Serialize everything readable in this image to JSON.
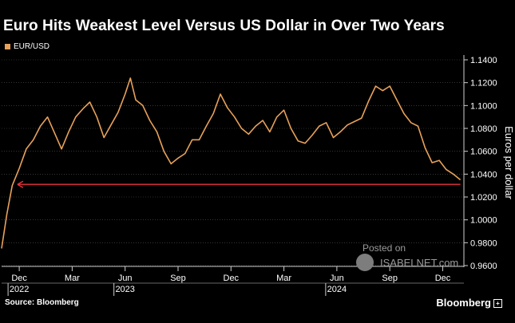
{
  "title": "Euro Hits Weakest Level Versus US Dollar in Over Two Years",
  "legend": {
    "label": "EUR/USD",
    "color": "#e8a15a"
  },
  "source": "Source: Bloomberg",
  "brand": "Bloomberg",
  "brand_icon": "bloomberg-terminal-icon",
  "watermark": {
    "posted": "Posted on",
    "site": "ISABELNET.com",
    "icon": "isabelnet-logo-icon"
  },
  "colors": {
    "line": "#e8a15a",
    "reference": "#e8323c",
    "grid": "#555555"
  },
  "chart_data": {
    "type": "line",
    "title": "Euro Hits Weakest Level Versus US Dollar in Over Two Years",
    "ylabel": "Euros per dollar",
    "xlabel": "",
    "ylim": [
      0.96,
      1.14
    ],
    "yticks": [
      "1.1400",
      "1.1200",
      "1.1000",
      "1.0800",
      "1.0600",
      "1.0400",
      "1.0200",
      "1.0000",
      "0.9800",
      "0.9600"
    ],
    "ytick_values": [
      1.14,
      1.12,
      1.1,
      1.08,
      1.06,
      1.04,
      1.02,
      1.0,
      0.98,
      0.96
    ],
    "x_range_months": [
      0,
      26.2
    ],
    "xticks": [
      {
        "label": "Dec",
        "month": 1
      },
      {
        "label": "Mar",
        "month": 4
      },
      {
        "label": "Jun",
        "month": 7
      },
      {
        "label": "Sep",
        "month": 10
      },
      {
        "label": "Dec",
        "month": 13
      },
      {
        "label": "Mar",
        "month": 16
      },
      {
        "label": "Jun",
        "month": 19
      },
      {
        "label": "Sep",
        "month": 22
      },
      {
        "label": "Dec",
        "month": 25
      }
    ],
    "years": [
      {
        "label": "2022",
        "month": 1
      },
      {
        "label": "2023",
        "month": 7
      },
      {
        "label": "2024",
        "month": 19
      }
    ],
    "series": [
      {
        "name": "EUR/USD",
        "x_months": [
          0.0,
          0.3,
          0.6,
          1.0,
          1.4,
          1.8,
          2.2,
          2.6,
          3.0,
          3.4,
          3.8,
          4.2,
          4.6,
          5.0,
          5.4,
          5.8,
          6.2,
          6.6,
          7.0,
          7.3,
          7.6,
          8.0,
          8.4,
          8.8,
          9.2,
          9.6,
          10.0,
          10.4,
          10.8,
          11.2,
          11.6,
          12.0,
          12.4,
          12.8,
          13.2,
          13.6,
          14.0,
          14.4,
          14.8,
          15.2,
          15.6,
          16.0,
          16.4,
          16.8,
          17.2,
          17.6,
          18.0,
          18.4,
          18.8,
          19.2,
          19.6,
          20.0,
          20.4,
          20.8,
          21.2,
          21.6,
          22.0,
          22.4,
          22.8,
          23.2,
          23.6,
          24.0,
          24.4,
          24.8,
          25.2,
          25.6,
          26.0
        ],
        "values": [
          0.975,
          1.005,
          1.03,
          1.045,
          1.062,
          1.07,
          1.082,
          1.09,
          1.076,
          1.062,
          1.077,
          1.09,
          1.097,
          1.103,
          1.09,
          1.072,
          1.083,
          1.094,
          1.11,
          1.124,
          1.105,
          1.1,
          1.087,
          1.077,
          1.06,
          1.049,
          1.054,
          1.058,
          1.07,
          1.07,
          1.082,
          1.093,
          1.11,
          1.098,
          1.09,
          1.08,
          1.075,
          1.082,
          1.087,
          1.077,
          1.09,
          1.096,
          1.08,
          1.069,
          1.067,
          1.074,
          1.082,
          1.085,
          1.072,
          1.077,
          1.083,
          1.086,
          1.089,
          1.104,
          1.117,
          1.113,
          1.117,
          1.105,
          1.093,
          1.085,
          1.082,
          1.063,
          1.05,
          1.052,
          1.044,
          1.04,
          1.035
        ]
      }
    ],
    "annotations": [
      {
        "type": "arrow",
        "value": 1.031,
        "from_month": 26.0,
        "to_month": 0.9,
        "color": "#e8323c",
        "note": "horizontal arrow marking current level back to late 2022"
      }
    ]
  }
}
